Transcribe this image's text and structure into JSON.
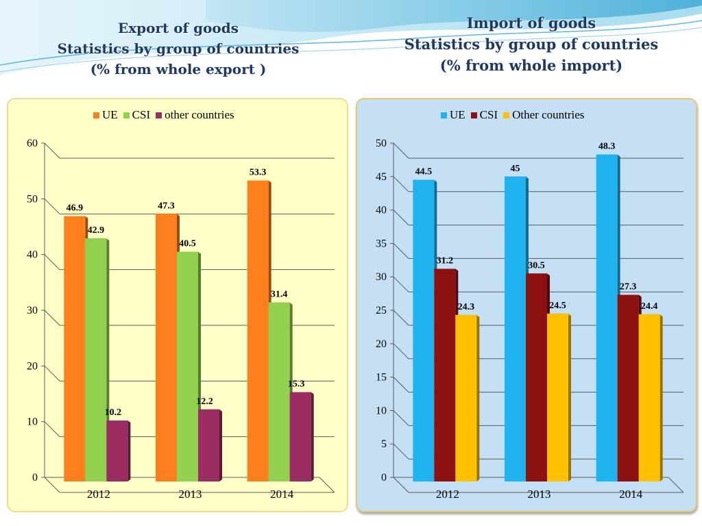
{
  "left_title": {
    "line1": "Export of goods",
    "line2": "Statistics by group of countries",
    "line3": "(% from whole export )"
  },
  "right_title": {
    "line1": "Import of goods",
    "line2": "Statistics by group of countries",
    "line3": "(% from whole import)"
  },
  "chart_data": [
    {
      "type": "bar",
      "title": "Export of goods Statistics by group of countries (% from whole export )",
      "categories": [
        "2012",
        "2013",
        "2014"
      ],
      "series": [
        {
          "name": "UE",
          "values": [
            46.9,
            47.3,
            53.3
          ],
          "color": "#ff7f1e"
        },
        {
          "name": "CSI",
          "values": [
            42.9,
            40.5,
            31.4
          ],
          "color": "#92d050"
        },
        {
          "name": "other countries",
          "values": [
            10.2,
            12.2,
            15.3
          ],
          "color": "#9b2d63"
        }
      ],
      "data_labels": [
        [
          "46.9",
          "42.9",
          "10.2"
        ],
        [
          "47.3",
          "40.5",
          "12.2"
        ],
        [
          "53.3",
          "31.4",
          "15.3"
        ]
      ],
      "ylim": [
        0,
        60
      ],
      "yticks": [
        "0",
        "10",
        "20",
        "30",
        "40",
        "50",
        "60"
      ],
      "grid": true,
      "legend": "top"
    },
    {
      "type": "bar",
      "title": "Import of goods Statistics by group of countries (% from whole import)",
      "categories": [
        "2012",
        "2013",
        "2014"
      ],
      "series": [
        {
          "name": "UE",
          "values": [
            44.5,
            45,
            48.3
          ],
          "color": "#1fb4ef"
        },
        {
          "name": "CSI",
          "values": [
            31.2,
            30.5,
            27.3
          ],
          "color": "#8b1010"
        },
        {
          "name": "Other countries",
          "values": [
            24.3,
            24.5,
            24.4
          ],
          "color": "#ffc000"
        }
      ],
      "data_labels": [
        [
          "44.5",
          "31.2",
          "24.3"
        ],
        [
          "45",
          "30.5",
          "24.5"
        ],
        [
          "48.3",
          "27.3",
          "24.4"
        ]
      ],
      "ylim": [
        0,
        50
      ],
      "yticks": [
        "0",
        "5",
        "10",
        "15",
        "20",
        "25",
        "30",
        "35",
        "40",
        "45",
        "50"
      ],
      "grid": true,
      "legend": "top"
    }
  ]
}
